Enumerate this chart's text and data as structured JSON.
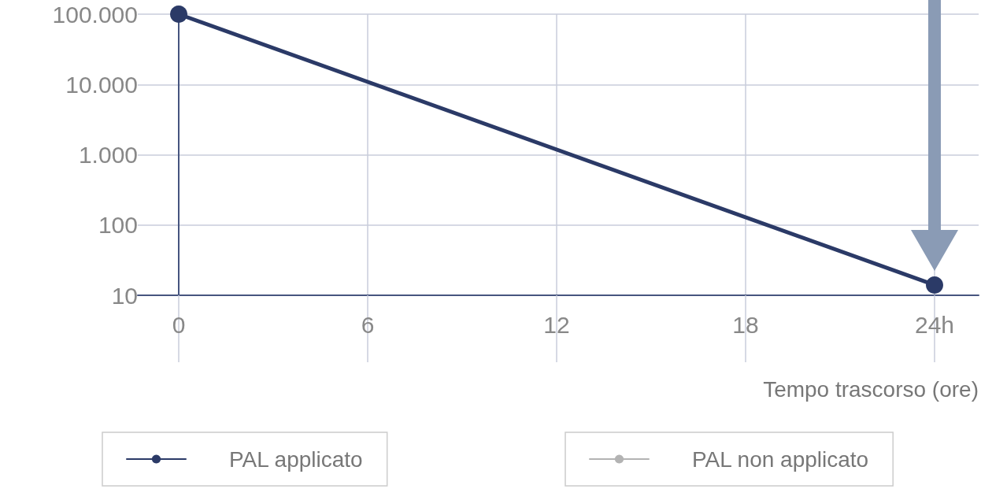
{
  "chart_data": {
    "type": "line",
    "xlabel": "Tempo trascorso (ore)",
    "x": [
      0,
      24
    ],
    "series": [
      {
        "name": "PAL applicato",
        "color": "#2b3a67",
        "values": [
          100000,
          14
        ]
      },
      {
        "name": "PAL non applicato",
        "color": "#b3b3b3",
        "values": [
          null,
          null
        ]
      }
    ],
    "log": "y",
    "xlim": [
      -1.3,
      25.4
    ],
    "ylim": [
      10,
      100000
    ],
    "xticks": [
      0,
      6,
      12,
      18,
      {
        "value": 24,
        "label": "24h"
      }
    ],
    "yticks": [
      10,
      100,
      {
        "value": 1000,
        "label": "1.000"
      },
      {
        "value": 10000,
        "label": "10.000"
      },
      {
        "value": 100000,
        "label": "100.000"
      }
    ],
    "grid": true,
    "legend": "bottom",
    "marker": "circle",
    "line_style": "solid"
  }
}
